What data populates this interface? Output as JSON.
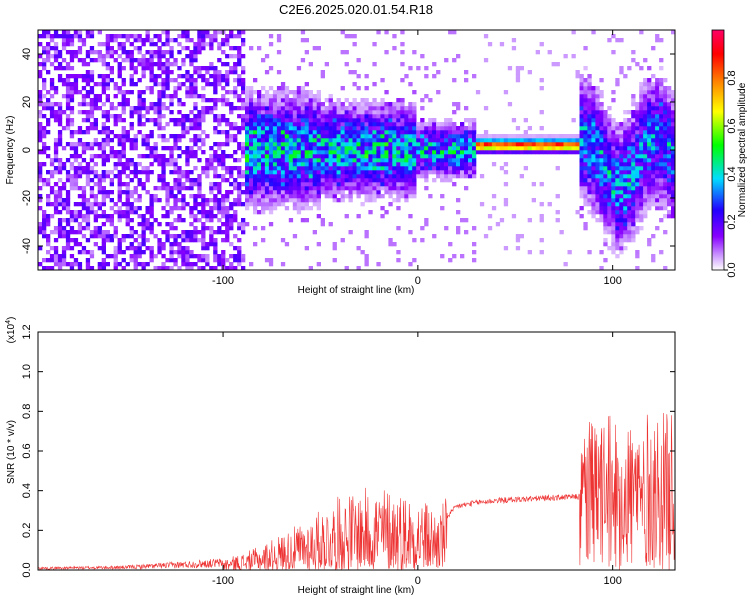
{
  "title": "C2E6.2025.020.01.54.R18",
  "colors": {
    "signal": "#ee3333",
    "colormap": [
      "#ffffff",
      "#8800ff",
      "#2200ff",
      "#00ddff",
      "#00ff00",
      "#ffff00",
      "#ff8800",
      "#ff0000",
      "#ff0066"
    ]
  },
  "chart_data": [
    {
      "type": "heatmap",
      "xlabel": "Height of straight line (km)",
      "ylabel": "Frequency (Hz)",
      "xlim": [
        -195,
        132
      ],
      "ylim": [
        -50,
        50
      ],
      "xticks": [
        -100,
        0,
        100
      ],
      "yticks": [
        -40,
        -20,
        0,
        20,
        40
      ],
      "colorbar": {
        "label": "Normalized spectral amplitude",
        "range": [
          0.0,
          1.0
        ],
        "ticks": [
          "0.0",
          "0.2",
          "0.4",
          "0.6",
          "0.8"
        ]
      },
      "features": {
        "broadband_noise": {
          "x": [
            -195,
            -88
          ],
          "y": [
            -50,
            50
          ],
          "amplitude": 0.15
        },
        "spread_band": {
          "x": [
            -100,
            30
          ],
          "y": [
            -15,
            15
          ],
          "amplitude": 0.35
        },
        "line_ridge": {
          "x": [
            30,
            83
          ],
          "y": 2,
          "amplitude": 0.95
        },
        "high_noise": {
          "x": [
            83,
            132
          ],
          "y": [
            -40,
            30
          ],
          "amplitude": 0.3
        }
      }
    },
    {
      "type": "line",
      "xlabel": "Height of straight line (km)",
      "ylabel": "SNR (10 * v/v)",
      "yscale_label": "(x10",
      "yscale_exponent": "4",
      "yscale_suffix": ")",
      "xlim": [
        -195,
        132
      ],
      "ylim": [
        0.0,
        1.2
      ],
      "xticks": [
        -100,
        0,
        100
      ],
      "yticks": [
        "0.0",
        "0.2",
        "0.4",
        "0.6",
        "0.8",
        "1.0",
        "1.2"
      ],
      "envelope": {
        "x": [
          -195,
          -150,
          -100,
          -90,
          -80,
          -70,
          -60,
          -50,
          -40,
          -30,
          -20,
          -10,
          0,
          10,
          15,
          20,
          30,
          40,
          60,
          83,
          84,
          100,
          132
        ],
        "y": [
          0.01,
          0.015,
          0.04,
          0.06,
          0.09,
          0.13,
          0.17,
          0.22,
          0.27,
          0.29,
          0.31,
          0.29,
          0.27,
          0.22,
          0.27,
          0.32,
          0.34,
          0.35,
          0.36,
          0.37,
          0.75,
          0.78,
          0.8
        ]
      }
    }
  ]
}
